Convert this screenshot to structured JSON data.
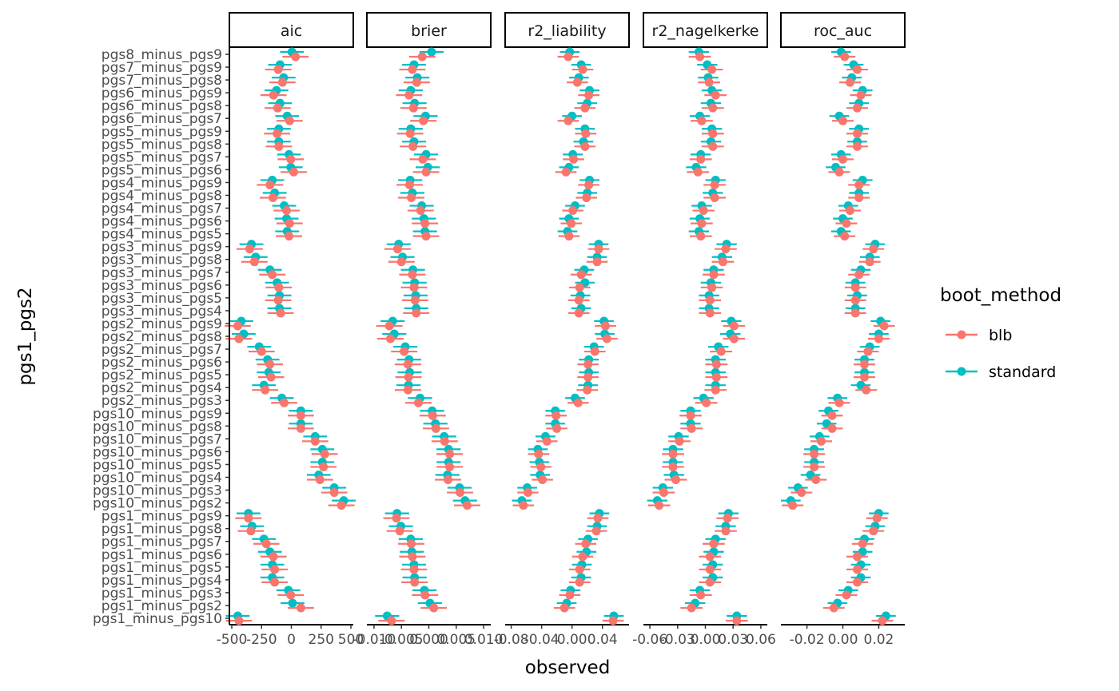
{
  "chart_data": {
    "type": "scatter",
    "xlabel": "observed",
    "ylabel": "pgs1_pgs2",
    "legend": {
      "title": "boot_method",
      "position": "right",
      "entries": [
        {
          "name": "blb",
          "color": "#F8766D"
        },
        {
          "name": "standard",
          "color": "#00BFC4"
        }
      ]
    },
    "grid": false,
    "categories": [
      "pgs8_minus_pgs9",
      "pgs7_minus_pgs9",
      "pgs7_minus_pgs8",
      "pgs6_minus_pgs9",
      "pgs6_minus_pgs8",
      "pgs6_minus_pgs7",
      "pgs5_minus_pgs9",
      "pgs5_minus_pgs8",
      "pgs5_minus_pgs7",
      "pgs5_minus_pgs6",
      "pgs4_minus_pgs9",
      "pgs4_minus_pgs8",
      "pgs4_minus_pgs7",
      "pgs4_minus_pgs6",
      "pgs4_minus_pgs5",
      "pgs3_minus_pgs9",
      "pgs3_minus_pgs8",
      "pgs3_minus_pgs7",
      "pgs3_minus_pgs6",
      "pgs3_minus_pgs5",
      "pgs3_minus_pgs4",
      "pgs2_minus_pgs9",
      "pgs2_minus_pgs8",
      "pgs2_minus_pgs7",
      "pgs2_minus_pgs6",
      "pgs2_minus_pgs5",
      "pgs2_minus_pgs4",
      "pgs2_minus_pgs3",
      "pgs10_minus_pgs9",
      "pgs10_minus_pgs8",
      "pgs10_minus_pgs7",
      "pgs10_minus_pgs6",
      "pgs10_minus_pgs5",
      "pgs10_minus_pgs4",
      "pgs10_minus_pgs3",
      "pgs10_minus_pgs2",
      "pgs1_minus_pgs9",
      "pgs1_minus_pgs8",
      "pgs1_minus_pgs7",
      "pgs1_minus_pgs6",
      "pgs1_minus_pgs5",
      "pgs1_minus_pgs4",
      "pgs1_minus_pgs3",
      "pgs1_minus_pgs2",
      "pgs1_minus_pgs10"
    ],
    "facets": [
      {
        "label": "aic",
        "xlim": [
          -520,
          520
        ],
        "ticks": [
          -500,
          -250,
          0,
          250,
          500
        ],
        "tick_labels": [
          "-500",
          "-250",
          "0",
          "250",
          "500"
        ],
        "series": [
          {
            "name": "standard",
            "err": 100,
            "values": [
              5,
              -95,
              -65,
              -125,
              -95,
              -35,
              -105,
              -105,
              -20,
              -5,
              -160,
              -140,
              -60,
              -40,
              -35,
              -335,
              -300,
              -180,
              -120,
              -100,
              -100,
              -420,
              -400,
              -270,
              -200,
              -190,
              -230,
              -80,
              80,
              80,
              200,
              260,
              260,
              230,
              360,
              440,
              -360,
              -330,
              -230,
              -180,
              -160,
              -160,
              -25,
              10,
              -450
            ]
          },
          {
            "name": "blb",
            "err": 110,
            "values": [
              35,
              -110,
              -75,
              -150,
              -115,
              -15,
              -120,
              -105,
              -5,
              20,
              -180,
              -155,
              -40,
              -15,
              -20,
              -350,
              -310,
              -160,
              -105,
              -110,
              -90,
              -450,
              -440,
              -250,
              -180,
              -170,
              -220,
              -60,
              80,
              80,
              200,
              280,
              270,
              240,
              360,
              420,
              -360,
              -340,
              -210,
              -150,
              -140,
              -140,
              -5,
              80,
              -440
            ]
          }
        ]
      },
      {
        "label": "brier",
        "xlim": [
          -0.0113,
          0.0113
        ],
        "ticks": [
          -0.01,
          -0.005,
          0,
          0.005,
          0.01
        ],
        "tick_labels": [
          "-0.010",
          "-0.005",
          "0.000",
          "0.005",
          "0.010"
        ],
        "series": [
          {
            "name": "standard",
            "err": 0.0022,
            "values": [
              0.0005,
              -0.0027,
              -0.0021,
              -0.0033,
              -0.0026,
              -0.0006,
              -0.0033,
              -0.0027,
              -0.0005,
              -0.0002,
              -0.0034,
              -0.003,
              -0.0013,
              -0.0009,
              -0.0007,
              -0.0055,
              -0.0048,
              -0.0029,
              -0.0026,
              -0.0024,
              -0.0023,
              -0.0066,
              -0.0063,
              -0.0043,
              -0.0036,
              -0.0035,
              -0.0037,
              -0.0016,
              0.0006,
              0.0012,
              0.0028,
              0.0036,
              0.0036,
              0.0034,
              0.0056,
              0.0066,
              -0.0058,
              -0.0051,
              -0.0033,
              -0.0031,
              -0.0027,
              -0.0026,
              -0.0008,
              0.0002,
              -0.0076
            ]
          },
          {
            "name": "blb",
            "err": 0.0024,
            "values": [
              -0.0012,
              -0.003,
              -0.0022,
              -0.0036,
              -0.0028,
              -0.001,
              -0.0034,
              -0.0029,
              -0.0011,
              -0.0005,
              -0.0035,
              -0.0032,
              -0.0015,
              -0.0007,
              -0.0005,
              -0.0057,
              -0.005,
              -0.003,
              -0.0027,
              -0.0025,
              -0.0023,
              -0.0072,
              -0.007,
              -0.0045,
              -0.0038,
              -0.0037,
              -0.0038,
              -0.0019,
              0.0007,
              0.0013,
              0.0029,
              0.0038,
              0.0038,
              0.0035,
              0.0057,
              0.007,
              -0.0059,
              -0.0053,
              -0.0032,
              -0.003,
              -0.0027,
              -0.0026,
              -0.0007,
              0.0009,
              -0.0068
            ]
          }
        ]
      },
      {
        "label": "r2_liability",
        "xlim": [
          -0.088,
          0.075
        ],
        "ticks": [
          -0.08,
          -0.04,
          0,
          0.04
        ],
        "tick_labels": [
          "-0.08",
          "-0.04",
          "0.00",
          "0.04"
        ],
        "series": [
          {
            "name": "standard",
            "err": 0.013,
            "values": [
              -0.003,
              0.012,
              0.009,
              0.023,
              0.02,
              0.0,
              0.017,
              0.015,
              0.001,
              -0.004,
              0.023,
              0.02,
              0.004,
              -0.004,
              -0.006,
              0.035,
              0.033,
              0.016,
              0.017,
              0.011,
              0.012,
              0.042,
              0.043,
              0.029,
              0.022,
              0.022,
              0.021,
              0.004,
              -0.022,
              -0.022,
              -0.035,
              -0.045,
              -0.043,
              -0.042,
              -0.059,
              -0.066,
              0.036,
              0.033,
              0.021,
              0.019,
              0.013,
              0.012,
              -0.002,
              -0.007,
              0.055
            ]
          },
          {
            "name": "blb",
            "err": 0.014,
            "values": [
              -0.005,
              0.014,
              0.007,
              0.022,
              0.017,
              -0.005,
              0.018,
              0.017,
              0.002,
              -0.008,
              0.022,
              0.019,
              0.001,
              -0.001,
              -0.004,
              0.035,
              0.033,
              0.012,
              0.01,
              0.009,
              0.009,
              0.044,
              0.046,
              0.03,
              0.021,
              0.021,
              0.02,
              0.008,
              -0.021,
              -0.02,
              -0.033,
              -0.044,
              -0.041,
              -0.039,
              -0.058,
              -0.064,
              0.034,
              0.032,
              0.018,
              0.014,
              0.01,
              0.01,
              -0.003,
              -0.01,
              0.054
            ]
          }
        ]
      },
      {
        "label": "r2_nagelkerke",
        "xlim": [
          -0.067,
          0.067
        ],
        "ticks": [
          -0.06,
          -0.03,
          0,
          0.03,
          0.06
        ],
        "tick_labels": [
          "-0.06",
          "-0.03",
          "0.00",
          "0.03",
          "0.06"
        ],
        "series": [
          {
            "name": "standard",
            "err": 0.011,
            "values": [
              -0.007,
              0.002,
              0.003,
              0.007,
              0.006,
              -0.006,
              0.007,
              0.006,
              -0.005,
              -0.01,
              0.011,
              0.008,
              -0.004,
              -0.006,
              -0.007,
              0.023,
              0.018,
              0.009,
              0.006,
              0.004,
              0.004,
              0.028,
              0.027,
              0.014,
              0.011,
              0.011,
              0.011,
              -0.002,
              -0.016,
              -0.016,
              -0.029,
              -0.035,
              -0.035,
              -0.034,
              -0.046,
              -0.052,
              0.025,
              0.022,
              0.011,
              0.009,
              0.008,
              0.008,
              -0.006,
              -0.011,
              0.034
            ]
          },
          {
            "name": "blb",
            "err": 0.012,
            "values": [
              -0.006,
              0.007,
              0.004,
              0.011,
              0.008,
              -0.004,
              0.008,
              0.008,
              -0.005,
              -0.008,
              0.01,
              0.01,
              -0.002,
              -0.004,
              -0.005,
              0.022,
              0.019,
              0.009,
              0.007,
              0.005,
              0.005,
              0.031,
              0.031,
              0.017,
              0.012,
              0.012,
              0.011,
              0.001,
              -0.016,
              -0.015,
              -0.028,
              -0.035,
              -0.035,
              -0.032,
              -0.045,
              -0.05,
              0.024,
              0.022,
              0.009,
              0.005,
              0.005,
              0.005,
              -0.005,
              -0.015,
              0.034
            ]
          }
        ]
      },
      {
        "label": "roc_auc",
        "xlim": [
          -0.0345,
          0.0345
        ],
        "ticks": [
          -0.02,
          0,
          0.02
        ],
        "tick_labels": [
          "-0.02",
          "0.00",
          "0.02"
        ],
        "series": [
          {
            "name": "standard",
            "err": 0.0055,
            "values": [
              -0.001,
              0.006,
              0.005,
              0.011,
              0.009,
              -0.002,
              0.009,
              0.008,
              -0.001,
              -0.004,
              0.011,
              0.009,
              0.003,
              0.0,
              -0.001,
              0.018,
              0.015,
              0.01,
              0.007,
              0.008,
              0.007,
              0.021,
              0.02,
              0.015,
              0.012,
              0.012,
              0.01,
              -0.003,
              -0.008,
              -0.009,
              -0.013,
              -0.016,
              -0.016,
              -0.018,
              -0.025,
              -0.029,
              0.02,
              0.018,
              0.012,
              0.011,
              0.01,
              0.01,
              0.003,
              -0.003,
              0.024
            ]
          },
          {
            "name": "blb",
            "err": 0.006,
            "values": [
              0.001,
              0.008,
              0.004,
              0.01,
              0.008,
              0.0,
              0.008,
              0.008,
              0.0,
              -0.002,
              0.009,
              0.009,
              0.004,
              0.002,
              0.001,
              0.017,
              0.015,
              0.009,
              0.007,
              0.007,
              0.007,
              0.023,
              0.02,
              0.014,
              0.012,
              0.012,
              0.013,
              -0.002,
              -0.006,
              -0.006,
              -0.012,
              -0.016,
              -0.016,
              -0.015,
              -0.023,
              -0.028,
              0.019,
              0.017,
              0.011,
              0.008,
              0.008,
              0.008,
              0.002,
              -0.005,
              0.022
            ]
          }
        ]
      }
    ]
  }
}
